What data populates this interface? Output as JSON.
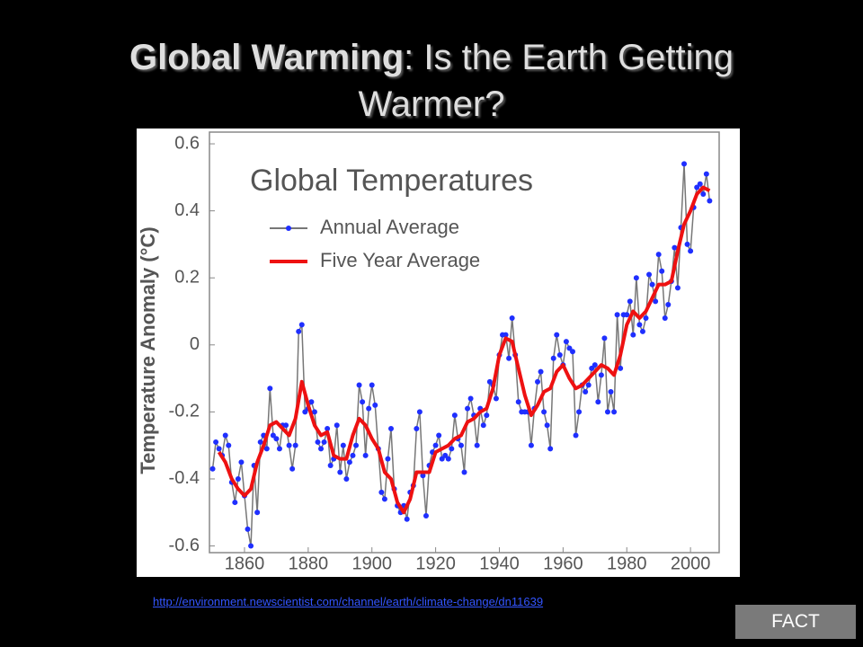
{
  "slide": {
    "title_bold": "Global Warming",
    "title_rest": ": Is the Earth Getting Warmer?",
    "link": "http://environment.newscientist.com/channel/earth/climate-change/dn11639",
    "button": "FACT"
  },
  "chart_data": {
    "type": "line",
    "title": "Global Temperatures",
    "ylabel": "Temperature Anomaly (°C)",
    "xlim": [
      1849,
      2009
    ],
    "xticks": [
      1860,
      1880,
      1900,
      1920,
      1940,
      1960,
      1980,
      2000
    ],
    "ylim": [
      -0.62,
      0.635
    ],
    "yticks": [
      -0.6,
      -0.4,
      -0.2,
      0,
      0.2,
      0.4,
      0.6
    ],
    "legend": "upper left",
    "series": [
      {
        "name": "Annual Average",
        "color": "#777777",
        "marker_color": "#1f2fff",
        "markers": true,
        "x": [
          1850,
          1851,
          1852,
          1853,
          1854,
          1855,
          1856,
          1857,
          1858,
          1859,
          1860,
          1861,
          1862,
          1863,
          1864,
          1865,
          1866,
          1867,
          1868,
          1869,
          1870,
          1871,
          1872,
          1873,
          1874,
          1875,
          1876,
          1877,
          1878,
          1879,
          1880,
          1881,
          1882,
          1883,
          1884,
          1885,
          1886,
          1887,
          1888,
          1889,
          1890,
          1891,
          1892,
          1893,
          1894,
          1895,
          1896,
          1897,
          1898,
          1899,
          1900,
          1901,
          1902,
          1903,
          1904,
          1905,
          1906,
          1907,
          1908,
          1909,
          1910,
          1911,
          1912,
          1913,
          1914,
          1915,
          1916,
          1917,
          1918,
          1919,
          1920,
          1921,
          1922,
          1923,
          1924,
          1925,
          1926,
          1927,
          1928,
          1929,
          1930,
          1931,
          1932,
          1933,
          1934,
          1935,
          1936,
          1937,
          1938,
          1939,
          1940,
          1941,
          1942,
          1943,
          1944,
          1945,
          1946,
          1947,
          1948,
          1949,
          1950,
          1951,
          1952,
          1953,
          1954,
          1955,
          1956,
          1957,
          1958,
          1959,
          1960,
          1961,
          1962,
          1963,
          1964,
          1965,
          1966,
          1967,
          1968,
          1969,
          1970,
          1971,
          1972,
          1973,
          1974,
          1975,
          1976,
          1977,
          1978,
          1979,
          1980,
          1981,
          1982,
          1983,
          1984,
          1985,
          1986,
          1987,
          1988,
          1989,
          1990,
          1991,
          1992,
          1993,
          1994,
          1995,
          1996,
          1997,
          1998,
          1999,
          2000,
          2001,
          2002,
          2003,
          2004,
          2005,
          2006
        ],
        "values": [
          -0.37,
          -0.29,
          -0.31,
          -0.33,
          -0.27,
          -0.3,
          -0.41,
          -0.47,
          -0.4,
          -0.35,
          -0.45,
          -0.55,
          -0.6,
          -0.36,
          -0.5,
          -0.29,
          -0.27,
          -0.31,
          -0.13,
          -0.27,
          -0.28,
          -0.31,
          -0.24,
          -0.24,
          -0.3,
          -0.37,
          -0.3,
          0.04,
          0.06,
          -0.2,
          -0.19,
          -0.17,
          -0.2,
          -0.29,
          -0.31,
          -0.29,
          -0.25,
          -0.36,
          -0.34,
          -0.24,
          -0.38,
          -0.3,
          -0.4,
          -0.35,
          -0.33,
          -0.3,
          -0.12,
          -0.17,
          -0.33,
          -0.19,
          -0.12,
          -0.18,
          -0.31,
          -0.44,
          -0.46,
          -0.34,
          -0.25,
          -0.43,
          -0.48,
          -0.5,
          -0.48,
          -0.52,
          -0.44,
          -0.42,
          -0.25,
          -0.2,
          -0.39,
          -0.51,
          -0.36,
          -0.32,
          -0.3,
          -0.27,
          -0.34,
          -0.33,
          -0.34,
          -0.31,
          -0.21,
          -0.28,
          -0.3,
          -0.38,
          -0.19,
          -0.16,
          -0.21,
          -0.3,
          -0.19,
          -0.24,
          -0.21,
          -0.11,
          -0.12,
          -0.16,
          -0.03,
          0.03,
          0.03,
          -0.04,
          0.08,
          -0.03,
          -0.17,
          -0.2,
          -0.2,
          -0.2,
          -0.3,
          -0.19,
          -0.11,
          -0.08,
          -0.2,
          -0.24,
          -0.31,
          -0.04,
          0.03,
          -0.03,
          -0.06,
          0.01,
          -0.01,
          -0.02,
          -0.27,
          -0.2,
          -0.12,
          -0.14,
          -0.12,
          -0.07,
          -0.06,
          -0.17,
          -0.09,
          0.02,
          -0.2,
          -0.14,
          -0.2,
          0.09,
          -0.07,
          0.09,
          0.09,
          0.13,
          0.03,
          0.2,
          0.06,
          0.04,
          0.08,
          0.21,
          0.18,
          0.13,
          0.27,
          0.22,
          0.08,
          0.12,
          0.19,
          0.29,
          0.17,
          0.35,
          0.54,
          0.3,
          0.28,
          0.41,
          0.47,
          0.48,
          0.45,
          0.51,
          0.43
        ]
      },
      {
        "name": "Five Year Average",
        "color": "#ee1111",
        "markers": false,
        "x": [
          1852,
          1854,
          1856,
          1858,
          1860,
          1862,
          1864,
          1866,
          1868,
          1870,
          1872,
          1874,
          1876,
          1878,
          1880,
          1882,
          1884,
          1886,
          1888,
          1890,
          1892,
          1894,
          1896,
          1898,
          1900,
          1902,
          1904,
          1906,
          1908,
          1910,
          1912,
          1914,
          1916,
          1918,
          1920,
          1922,
          1924,
          1926,
          1928,
          1930,
          1932,
          1934,
          1936,
          1938,
          1940,
          1942,
          1944,
          1946,
          1948,
          1950,
          1952,
          1954,
          1956,
          1958,
          1960,
          1962,
          1964,
          1966,
          1968,
          1970,
          1972,
          1974,
          1976,
          1978,
          1980,
          1982,
          1984,
          1986,
          1988,
          1990,
          1992,
          1994,
          1996,
          1998,
          2000,
          2002,
          2004,
          2006
        ],
        "values": [
          -0.32,
          -0.35,
          -0.4,
          -0.43,
          -0.45,
          -0.43,
          -0.35,
          -0.3,
          -0.24,
          -0.23,
          -0.25,
          -0.27,
          -0.22,
          -0.11,
          -0.18,
          -0.24,
          -0.27,
          -0.26,
          -0.33,
          -0.34,
          -0.34,
          -0.27,
          -0.22,
          -0.24,
          -0.28,
          -0.31,
          -0.38,
          -0.4,
          -0.47,
          -0.5,
          -0.46,
          -0.38,
          -0.38,
          -0.38,
          -0.32,
          -0.31,
          -0.3,
          -0.28,
          -0.27,
          -0.23,
          -0.22,
          -0.2,
          -0.19,
          -0.13,
          -0.03,
          0.02,
          0.01,
          -0.07,
          -0.15,
          -0.21,
          -0.18,
          -0.14,
          -0.13,
          -0.08,
          -0.06,
          -0.1,
          -0.13,
          -0.12,
          -0.1,
          -0.08,
          -0.06,
          -0.07,
          -0.09,
          -0.03,
          0.06,
          0.1,
          0.08,
          0.1,
          0.14,
          0.18,
          0.18,
          0.19,
          0.28,
          0.36,
          0.4,
          0.45,
          0.47,
          0.46
        ]
      }
    ]
  }
}
